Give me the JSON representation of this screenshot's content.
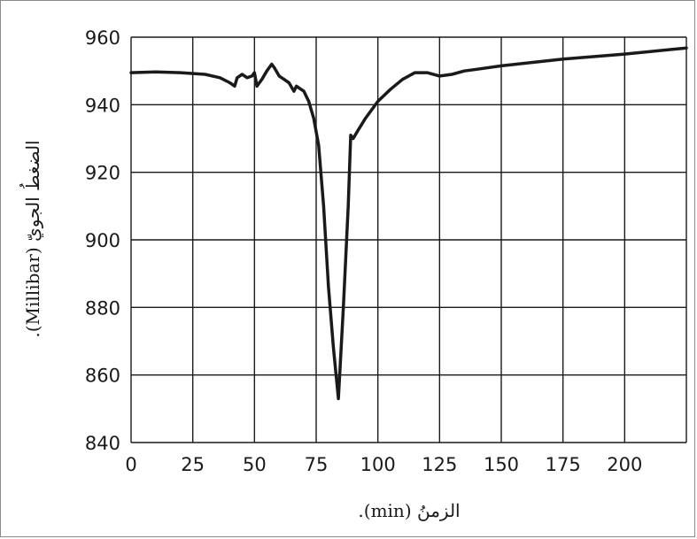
{
  "chart_data": {
    "type": "line",
    "title": "",
    "xlabel": "الزمنُ (min).",
    "ylabel": "الضغطُ الجويّ (Millibar).",
    "xlim": [
      0,
      225
    ],
    "ylim": [
      840,
      960
    ],
    "x_ticks": [
      0,
      25,
      50,
      75,
      100,
      125,
      150,
      175,
      200
    ],
    "y_ticks": [
      840,
      860,
      880,
      900,
      920,
      940,
      960
    ],
    "x_grid": [
      0,
      25,
      50,
      75,
      100,
      125,
      150,
      175,
      200,
      225
    ],
    "grid": true,
    "legend": false,
    "line_color": "#1a1a1a",
    "grid_color": "#1a1a1a",
    "series": [
      {
        "x": [
          0,
          10,
          20,
          30,
          36,
          40,
          42,
          43,
          45,
          47,
          49,
          50,
          51,
          53,
          55,
          57,
          58,
          60,
          62,
          64,
          66,
          67,
          68,
          70,
          72,
          74,
          76,
          78,
          80,
          82,
          84,
          86,
          88,
          89,
          90,
          92,
          95,
          100,
          105,
          110,
          115,
          120,
          125,
          130,
          135,
          140,
          150,
          175,
          200,
          225
        ],
        "y": [
          949.5,
          949.7,
          949.5,
          949,
          948,
          946.5,
          945.5,
          948,
          949,
          948,
          948.5,
          949.5,
          945.5,
          947.5,
          950,
          952,
          951,
          948.5,
          947.5,
          946.5,
          944,
          945.5,
          945,
          944,
          941,
          936,
          928,
          910,
          886,
          868,
          853,
          880,
          910,
          931,
          930,
          932.5,
          936,
          941,
          944.5,
          947.5,
          949.5,
          949.5,
          948.5,
          949,
          950,
          950.5,
          951.5,
          953.5,
          955,
          956.8
        ]
      }
    ]
  }
}
